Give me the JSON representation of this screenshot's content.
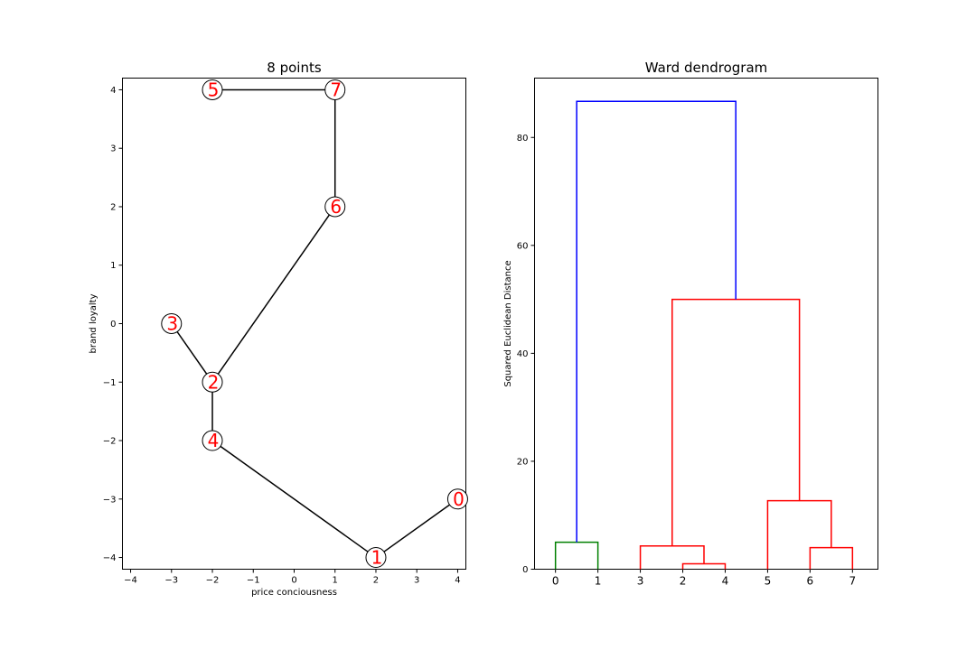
{
  "chart_data": [
    {
      "type": "scatter",
      "title": "8 points",
      "xlabel": "price conciousness",
      "ylabel": "brand loyalty",
      "xlim": [
        -4.2,
        4.2
      ],
      "ylim": [
        -4.2,
        4.2
      ],
      "xticks": [
        -4,
        -3,
        -2,
        -1,
        0,
        1,
        2,
        3,
        4
      ],
      "yticks": [
        -4,
        -3,
        -2,
        -1,
        0,
        1,
        2,
        3,
        4
      ],
      "xtick_labels": [
        "−4",
        "−3",
        "−2",
        "−1",
        "0",
        "1",
        "2",
        "3",
        "4"
      ],
      "ytick_labels": [
        "−4",
        "−3",
        "−2",
        "−1",
        "0",
        "1",
        "2",
        "3",
        "4"
      ],
      "points": [
        {
          "label": "0",
          "x": 4,
          "y": -3
        },
        {
          "label": "1",
          "x": 2,
          "y": -4
        },
        {
          "label": "2",
          "x": -2,
          "y": -1
        },
        {
          "label": "3",
          "x": -3,
          "y": 0
        },
        {
          "label": "4",
          "x": -2,
          "y": -2
        },
        {
          "label": "5",
          "x": -2,
          "y": 4
        },
        {
          "label": "6",
          "x": 1,
          "y": 2
        },
        {
          "label": "7",
          "x": 1,
          "y": 4
        }
      ],
      "edges": [
        [
          5,
          7
        ],
        [
          7,
          6
        ],
        [
          6,
          2
        ],
        [
          3,
          2
        ],
        [
          2,
          4
        ],
        [
          4,
          1
        ],
        [
          1,
          0
        ]
      ],
      "label_color": "#ff0000",
      "edge_color": "#000000"
    },
    {
      "type": "dendrogram",
      "title": "Ward dendrogram",
      "ylabel": "Squared Euclidean Distance",
      "ylim": [
        0,
        91
      ],
      "yticks": [
        0,
        20,
        40,
        60,
        80
      ],
      "ytick_labels": [
        "0",
        "20",
        "40",
        "60",
        "80"
      ],
      "leaves": [
        "0",
        "1",
        "3",
        "2",
        "4",
        "5",
        "6",
        "7"
      ],
      "links": [
        {
          "left": 0,
          "right": 1,
          "height": 5.0,
          "lh": 0,
          "rh": 0,
          "color": "#008000"
        },
        {
          "left": 3,
          "right": 4,
          "height": 1.0,
          "lh": 0,
          "rh": 0,
          "color": "#ff0000"
        },
        {
          "left": 2,
          "right": 3.5,
          "height": 4.3,
          "lh": 0,
          "rh": 1.0,
          "color": "#ff0000"
        },
        {
          "left": 6,
          "right": 7,
          "height": 4.0,
          "lh": 0,
          "rh": 0,
          "color": "#ff0000"
        },
        {
          "left": 5,
          "right": 6.5,
          "height": 12.7,
          "lh": 0,
          "rh": 4.0,
          "color": "#ff0000"
        },
        {
          "left": 2.75,
          "right": 5.75,
          "height": 50.0,
          "lh": 4.3,
          "rh": 12.7,
          "color": "#ff0000"
        },
        {
          "left": 0.5,
          "right": 4.25,
          "height": 86.7,
          "lh": 5.0,
          "rh": 50.0,
          "color": "#0000ff"
        }
      ]
    }
  ]
}
